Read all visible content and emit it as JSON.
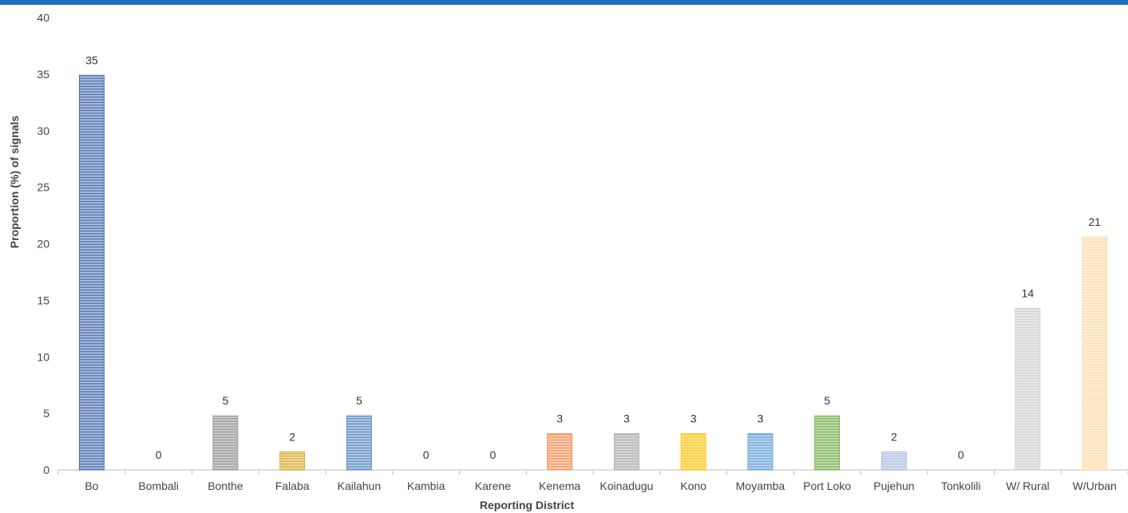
{
  "chart_data": {
    "type": "bar",
    "title": "",
    "xlabel": "Reporting District",
    "ylabel": "Proportion (%) of signals",
    "ylim": [
      0,
      40
    ],
    "yticks": [
      0,
      5,
      10,
      15,
      20,
      25,
      30,
      35,
      40
    ],
    "grid": false,
    "legend": "none",
    "categories": [
      "Bo",
      "Bombali",
      "Bonthe",
      "Falaba",
      "Kailahun",
      "Kambia",
      "Karene",
      "Kenema",
      "Koinadugu",
      "Kono",
      "Moyamba",
      "Port Loko",
      "Pujehun",
      "Tonkolili",
      "W/ Rural",
      "W/Urban"
    ],
    "values": [
      34.9,
      0,
      4.8,
      1.6,
      4.8,
      0,
      0,
      3.2,
      3.2,
      3.2,
      3.2,
      4.8,
      1.6,
      0,
      14.3,
      20.6
    ],
    "data_labels": [
      "35",
      "0",
      "5",
      "2",
      "5",
      "0",
      "0",
      "3",
      "3",
      "3",
      "3",
      "5",
      "2",
      "0",
      "14",
      "21"
    ],
    "colors": [
      "#3a5fa8",
      "#808080",
      "#8c8c8c",
      "#d9a520",
      "#4f81bd",
      "#808080",
      "#808080",
      "#f08a4b",
      "#a6a6a6",
      "#ffc000",
      "#5b9bd5",
      "#70ad47",
      "#a9b8e0",
      "#808080",
      "#cccccc",
      "#fbd9a0"
    ]
  },
  "accent_bar_color": "#1f6fbf"
}
